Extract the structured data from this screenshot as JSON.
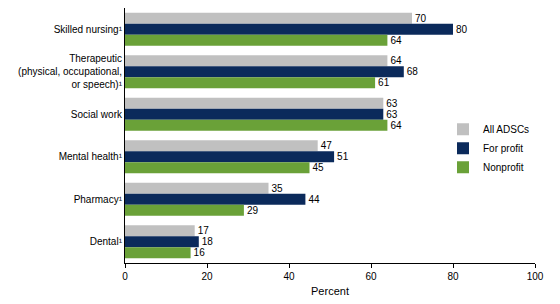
{
  "chart_data": {
    "type": "bar",
    "orientation": "horizontal",
    "categories": [
      "Skilled nursing¹",
      "Therapeutic\n(physical, occupational,\nor speech)¹",
      "Social work",
      "Mental health¹",
      "Pharmacy¹",
      "Dental¹"
    ],
    "series": [
      {
        "name": "All ADSCs",
        "color": "#c0c0c0",
        "values": [
          70,
          64,
          63,
          47,
          35,
          17
        ]
      },
      {
        "name": "For profit",
        "color": "#0b2a5b",
        "values": [
          80,
          68,
          63,
          51,
          44,
          18
        ]
      },
      {
        "name": "Nonprofit",
        "color": "#6aa138",
        "values": [
          64,
          61,
          64,
          45,
          29,
          16
        ]
      }
    ],
    "x_label": "Percent",
    "xlim": [
      0,
      100
    ],
    "xticks": [
      0,
      20,
      40,
      60,
      80,
      100
    ],
    "grid": false,
    "legend": "right",
    "data_labels": true
  }
}
